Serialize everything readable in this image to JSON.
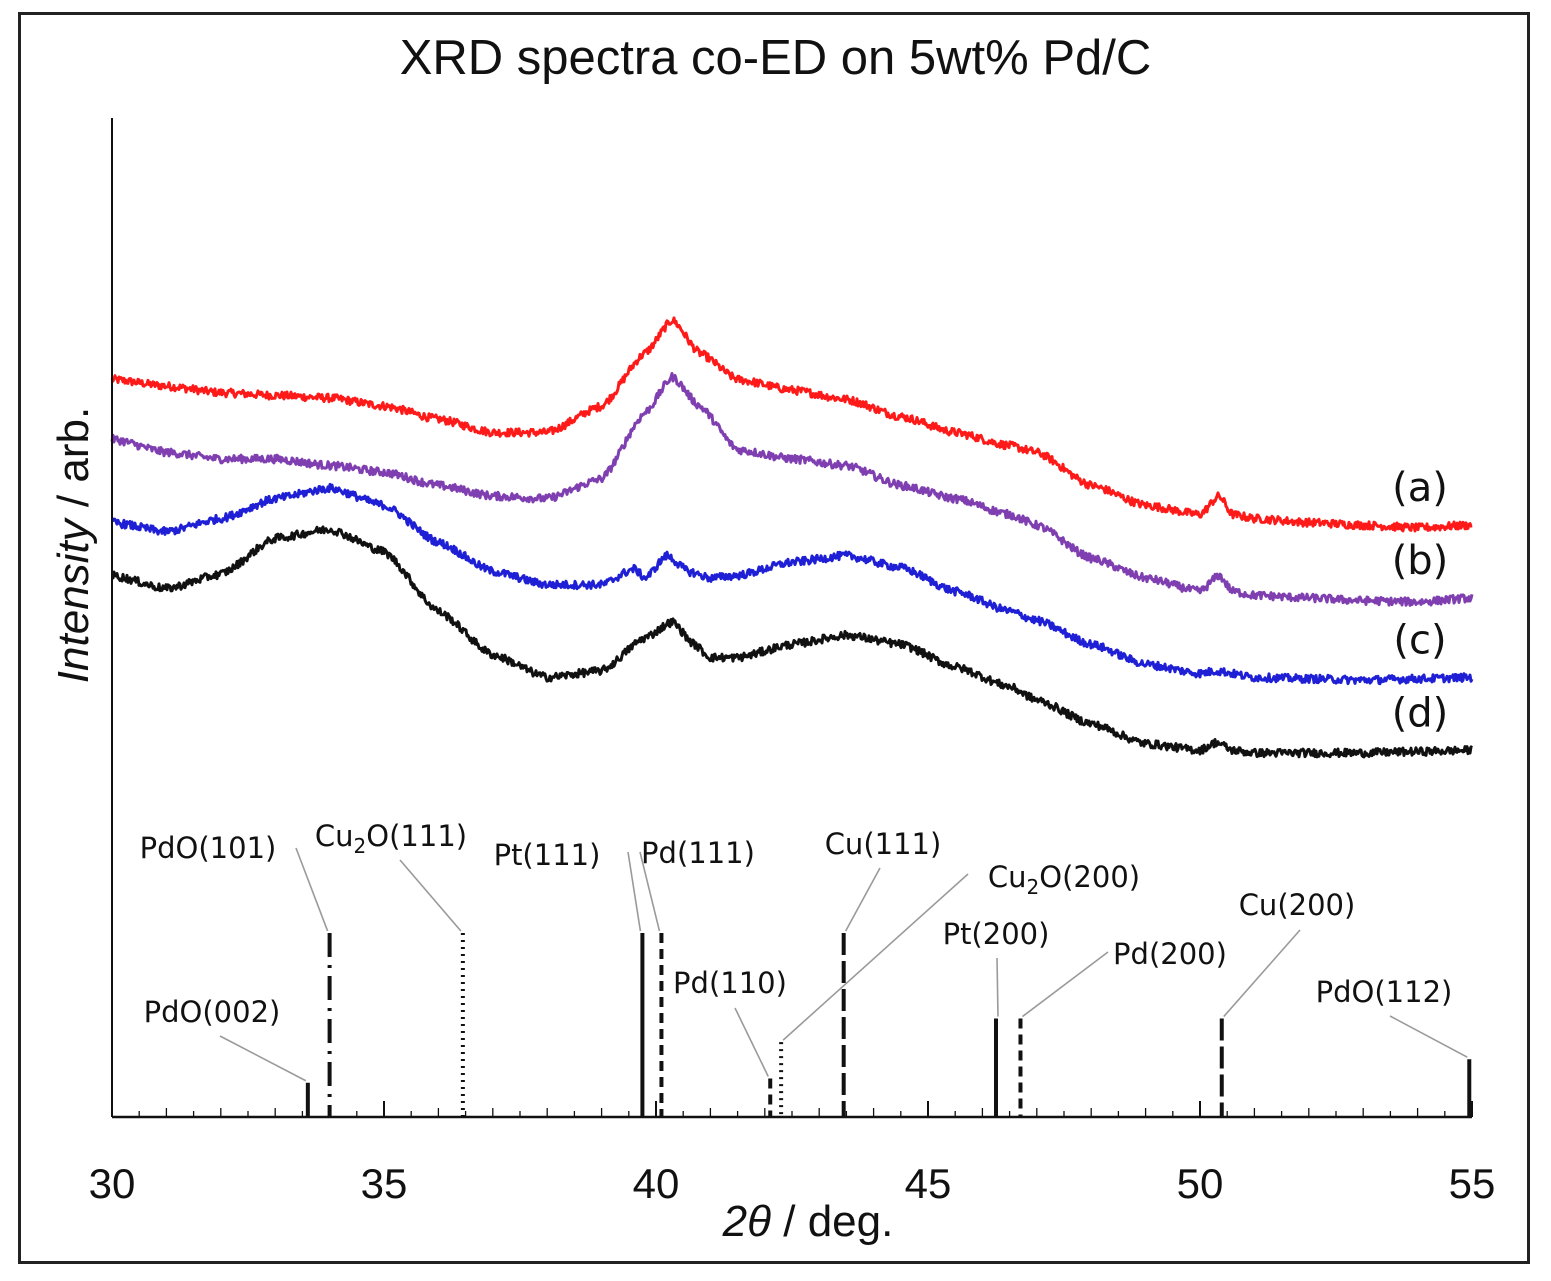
{
  "chart_data": {
    "type": "line",
    "title": "XRD spectra co-ED on 5wt% Pd/C",
    "xlabel": {
      "italic": "2θ",
      "rest": " / deg."
    },
    "ylabel": {
      "italic": "Intensity",
      "rest": " / arb."
    },
    "xlim": [
      30,
      55
    ],
    "ylim": [
      0,
      1
    ],
    "x_ticks": [
      30,
      35,
      40,
      45,
      50,
      55
    ],
    "x_tick_labels": [
      "30",
      "35",
      "40",
      "45",
      "50",
      "55"
    ],
    "minor_tick_step": 0.5,
    "series": [
      {
        "name": "(a)",
        "color": "#ff1a1a",
        "points": [
          [
            30,
            0.86
          ],
          [
            31,
            0.855
          ],
          [
            32,
            0.85
          ],
          [
            33,
            0.848
          ],
          [
            34,
            0.846
          ],
          [
            35,
            0.84
          ],
          [
            36,
            0.83
          ],
          [
            37,
            0.82
          ],
          [
            38,
            0.82
          ],
          [
            39,
            0.84
          ],
          [
            39.8,
            0.88
          ],
          [
            40.3,
            0.905
          ],
          [
            40.8,
            0.88
          ],
          [
            41.5,
            0.86
          ],
          [
            42.5,
            0.852
          ],
          [
            43.5,
            0.845
          ],
          [
            44.5,
            0.832
          ],
          [
            45.5,
            0.82
          ],
          [
            46.5,
            0.81
          ],
          [
            47,
            0.805
          ],
          [
            48,
            0.78
          ],
          [
            49,
            0.765
          ],
          [
            50,
            0.758
          ],
          [
            50.35,
            0.772
          ],
          [
            50.6,
            0.758
          ],
          [
            51,
            0.755
          ],
          [
            52,
            0.752
          ],
          [
            53,
            0.75
          ],
          [
            54,
            0.748
          ],
          [
            55,
            0.75
          ]
        ]
      },
      {
        "name": "(b)",
        "color": "#7f3fb0",
        "points": [
          [
            30,
            0.815
          ],
          [
            31,
            0.805
          ],
          [
            32,
            0.8
          ],
          [
            33,
            0.8
          ],
          [
            34,
            0.795
          ],
          [
            35,
            0.79
          ],
          [
            36,
            0.78
          ],
          [
            37,
            0.772
          ],
          [
            38,
            0.77
          ],
          [
            39,
            0.785
          ],
          [
            39.8,
            0.835
          ],
          [
            40.3,
            0.862
          ],
          [
            40.8,
            0.84
          ],
          [
            41.5,
            0.807
          ],
          [
            42.5,
            0.8
          ],
          [
            43.5,
            0.795
          ],
          [
            44.5,
            0.78
          ],
          [
            45.5,
            0.77
          ],
          [
            46.5,
            0.758
          ],
          [
            47,
            0.75
          ],
          [
            48,
            0.725
          ],
          [
            49,
            0.71
          ],
          [
            50,
            0.7
          ],
          [
            50.35,
            0.712
          ],
          [
            50.6,
            0.7
          ],
          [
            51,
            0.697
          ],
          [
            52,
            0.695
          ],
          [
            53,
            0.693
          ],
          [
            54,
            0.692
          ],
          [
            55,
            0.695
          ]
        ]
      },
      {
        "name": "(c)",
        "color": "#1f1fd6",
        "points": [
          [
            30,
            0.752
          ],
          [
            31,
            0.745
          ],
          [
            32,
            0.755
          ],
          [
            33,
            0.77
          ],
          [
            34,
            0.778
          ],
          [
            35,
            0.765
          ],
          [
            36,
            0.737
          ],
          [
            37,
            0.715
          ],
          [
            38,
            0.705
          ],
          [
            39,
            0.705
          ],
          [
            39.6,
            0.717
          ],
          [
            39.8,
            0.71
          ],
          [
            40.2,
            0.727
          ],
          [
            40.6,
            0.715
          ],
          [
            41,
            0.71
          ],
          [
            41.5,
            0.712
          ],
          [
            42.5,
            0.722
          ],
          [
            43.5,
            0.727
          ],
          [
            44.5,
            0.718
          ],
          [
            45.5,
            0.7
          ],
          [
            46.5,
            0.685
          ],
          [
            47,
            0.678
          ],
          [
            48,
            0.66
          ],
          [
            49,
            0.645
          ],
          [
            50,
            0.638
          ],
          [
            50.3,
            0.64
          ],
          [
            51,
            0.635
          ],
          [
            52,
            0.634
          ],
          [
            53,
            0.633
          ],
          [
            54,
            0.634
          ],
          [
            55,
            0.635
          ]
        ]
      },
      {
        "name": "(d)",
        "color": "#111111",
        "points": [
          [
            30,
            0.712
          ],
          [
            31,
            0.702
          ],
          [
            32,
            0.713
          ],
          [
            33,
            0.74
          ],
          [
            34,
            0.747
          ],
          [
            35,
            0.73
          ],
          [
            36,
            0.685
          ],
          [
            37,
            0.652
          ],
          [
            38,
            0.635
          ],
          [
            39,
            0.64
          ],
          [
            39.8,
            0.665
          ],
          [
            40.3,
            0.677
          ],
          [
            40.7,
            0.66
          ],
          [
            41,
            0.65
          ],
          [
            41.5,
            0.65
          ],
          [
            42.5,
            0.66
          ],
          [
            43.5,
            0.667
          ],
          [
            44.5,
            0.66
          ],
          [
            45.5,
            0.643
          ],
          [
            46.5,
            0.628
          ],
          [
            47,
            0.618
          ],
          [
            48,
            0.6
          ],
          [
            49,
            0.585
          ],
          [
            50,
            0.58
          ],
          [
            50.3,
            0.586
          ],
          [
            50.6,
            0.58
          ],
          [
            51,
            0.578
          ],
          [
            52,
            0.578
          ],
          [
            53,
            0.578
          ],
          [
            54,
            0.579
          ],
          [
            55,
            0.58
          ]
        ]
      }
    ],
    "reference_lines": [
      {
        "phase": "PdO(002)",
        "x": 33.6,
        "height": 0.16,
        "style": "solid"
      },
      {
        "phase": "PdO(101)",
        "x": 34.0,
        "height": 0.86,
        "style": "dashdot"
      },
      {
        "phase": "Cu2O(111)",
        "x": 36.45,
        "height": 0.86,
        "style": "dotted"
      },
      {
        "phase": "Pt(111)",
        "x": 39.75,
        "height": 0.86,
        "style": "solid"
      },
      {
        "phase": "Pd(111)",
        "x": 40.1,
        "height": 0.86,
        "style": "dashed"
      },
      {
        "phase": "Pd(110)",
        "x": 42.1,
        "height": 0.18,
        "style": "dashed"
      },
      {
        "phase": "Cu2O(200)",
        "x": 42.3,
        "height": 0.35,
        "style": "dotted"
      },
      {
        "phase": "Cu(111)",
        "x": 43.45,
        "height": 0.86,
        "style": "longdash"
      },
      {
        "phase": "Pt(200)",
        "x": 46.25,
        "height": 0.46,
        "style": "solid"
      },
      {
        "phase": "Pd(200)",
        "x": 46.7,
        "height": 0.46,
        "style": "dashed"
      },
      {
        "phase": "Cu(200)",
        "x": 50.4,
        "height": 0.46,
        "style": "longdash"
      },
      {
        "phase": "PdO(112)",
        "x": 54.95,
        "height": 0.27,
        "style": "solid"
      }
    ],
    "reference_labels": [
      {
        "main": "PdO(002)",
        "sub": "",
        "rest": ""
      },
      {
        "main": "PdO(101)",
        "sub": "",
        "rest": ""
      },
      {
        "main": "Cu",
        "sub": "2",
        "rest": "O(111)"
      },
      {
        "main": "Pt(111)",
        "sub": "",
        "rest": ""
      },
      {
        "main": "Pd(111)",
        "sub": "",
        "rest": ""
      },
      {
        "main": "Pd(110)",
        "sub": "",
        "rest": ""
      },
      {
        "main": "Cu",
        "sub": "2",
        "rest": "O(200)"
      },
      {
        "main": "Cu(111)",
        "sub": "",
        "rest": ""
      },
      {
        "main": "Pt(200)",
        "sub": "",
        "rest": ""
      },
      {
        "main": "Pd(200)",
        "sub": "",
        "rest": ""
      },
      {
        "main": "Cu(200)",
        "sub": "",
        "rest": ""
      },
      {
        "main": "PdO(112)",
        "sub": "",
        "rest": ""
      }
    ]
  }
}
